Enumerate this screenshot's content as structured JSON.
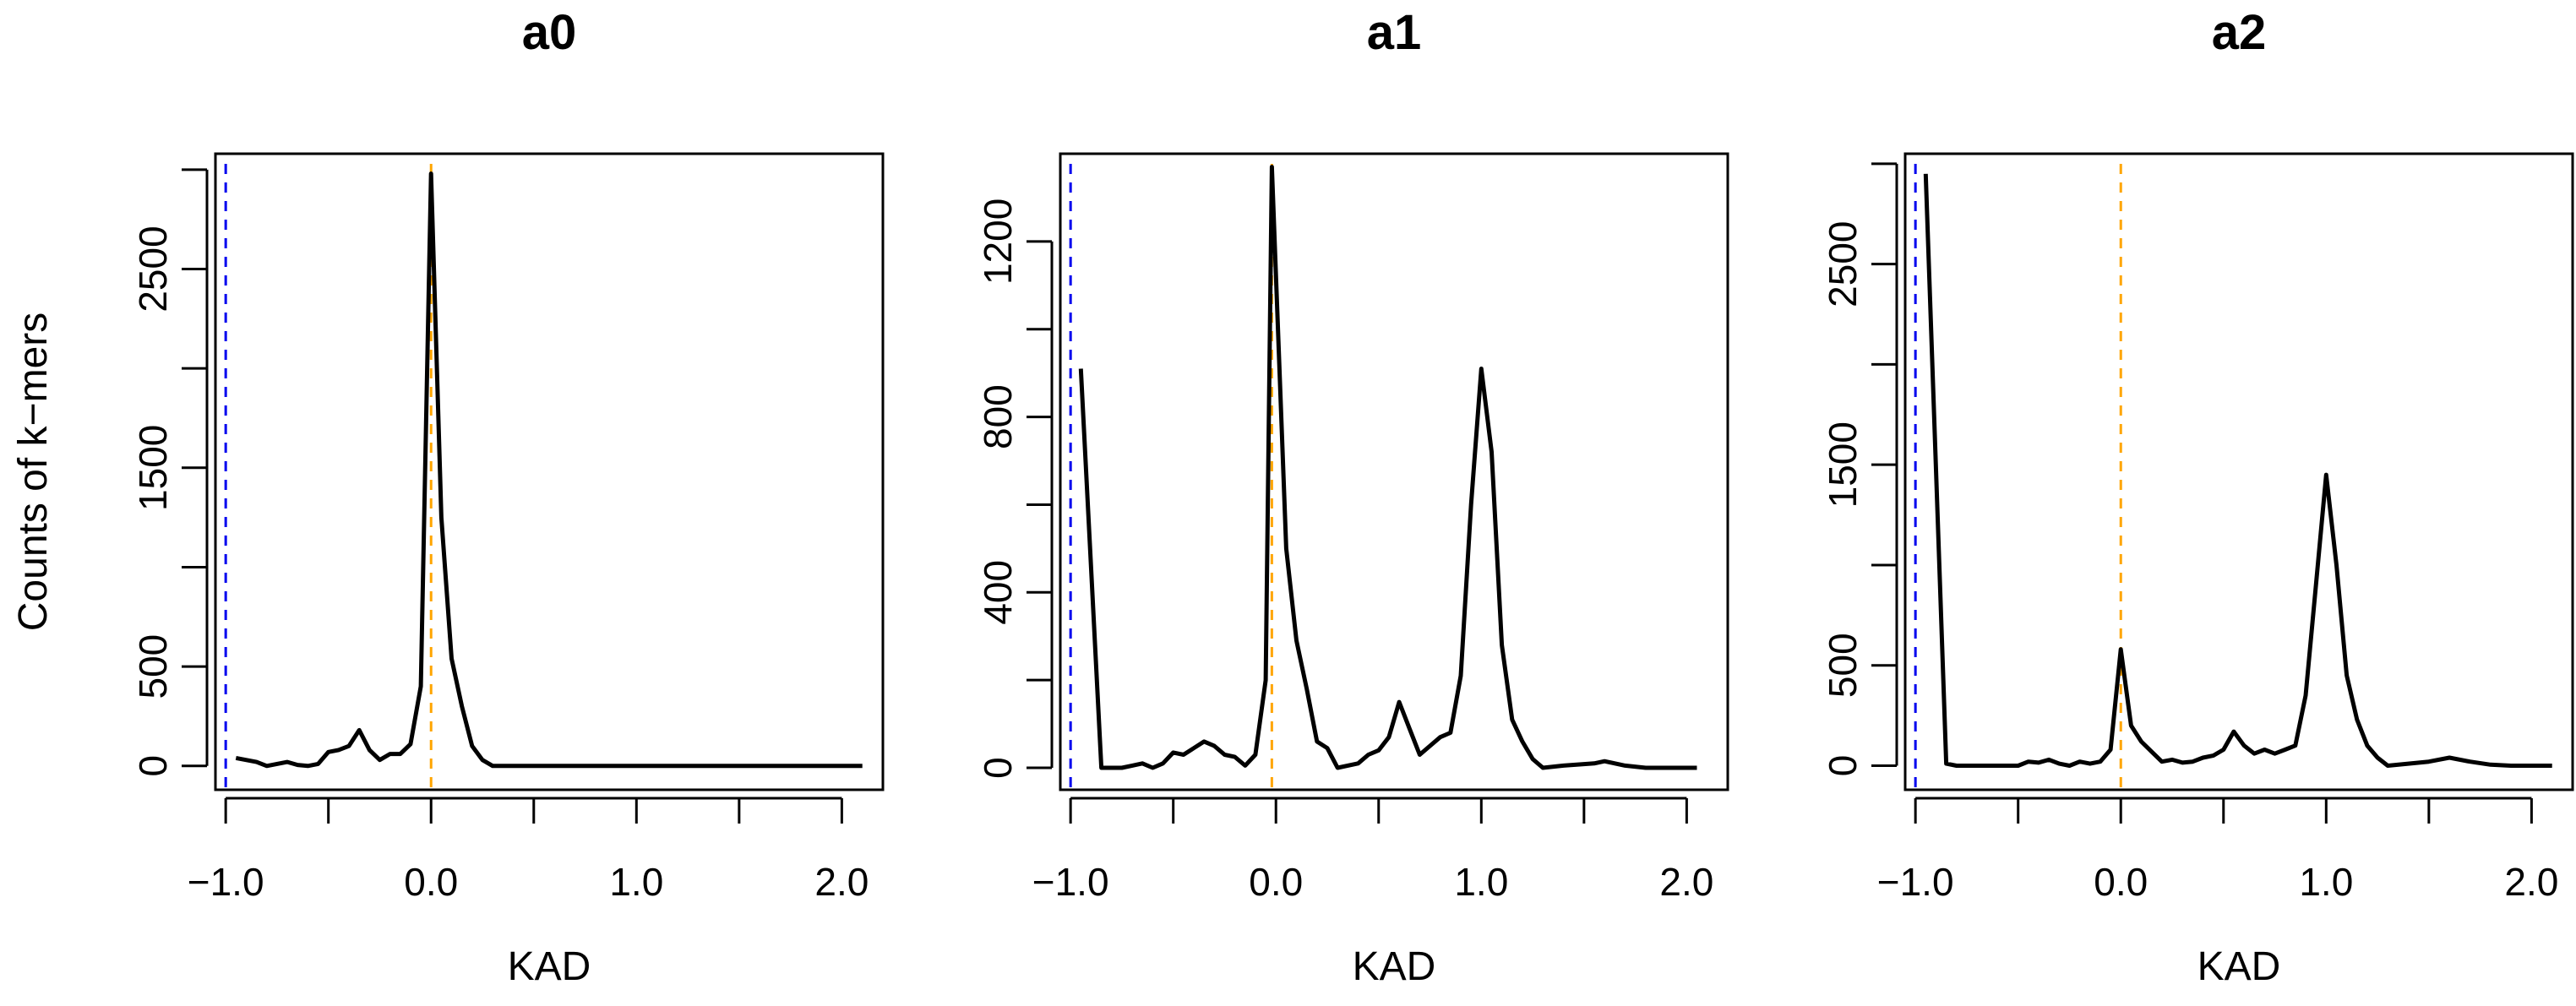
{
  "chart_data": [
    {
      "type": "line",
      "title": "a0",
      "xlabel": "KAD",
      "ylabel": "Counts of k−mers",
      "xlim": [
        -1.05,
        2.2
      ],
      "ylim": [
        -120,
        3080
      ],
      "xticks": [
        -1.0,
        -0.5,
        0.0,
        0.5,
        1.0,
        1.5,
        2.0
      ],
      "xtick_labels": [
        "−1.0",
        "0.0",
        "1.0",
        "2.0"
      ],
      "yticks": [
        0,
        500,
        1000,
        1500,
        2000,
        2500,
        3000
      ],
      "ytick_labels": [
        "0",
        "500",
        "1500",
        "2500"
      ],
      "vlines": [
        {
          "x": -1.0,
          "color": "#0000ee"
        },
        {
          "x": 0.0,
          "color": "#ffa500"
        }
      ],
      "line_color": "#000000",
      "series": [
        {
          "x": [
            -0.95,
            -0.85,
            -0.8,
            -0.75,
            -0.7,
            -0.65,
            -0.6,
            -0.55,
            -0.5,
            -0.45,
            -0.4,
            -0.35,
            -0.3,
            -0.25,
            -0.2,
            -0.15,
            -0.1,
            -0.05,
            0.0,
            0.05,
            0.1,
            0.15,
            0.2,
            0.25,
            0.3,
            0.35,
            0.5,
            1.0,
            1.5,
            2.1
          ],
          "y": [
            40,
            20,
            0,
            10,
            20,
            5,
            0,
            10,
            70,
            80,
            100,
            180,
            80,
            30,
            60,
            60,
            110,
            400,
            2980,
            1250,
            540,
            300,
            100,
            30,
            0,
            0,
            0,
            0,
            0,
            0
          ]
        }
      ]
    },
    {
      "type": "line",
      "title": "a1",
      "xlabel": "KAD",
      "ylabel": "",
      "xlim": [
        -1.05,
        2.2
      ],
      "ylim": [
        -50,
        1400
      ],
      "xticks": [
        -1.0,
        -0.5,
        0.0,
        0.5,
        1.0,
        1.5,
        2.0
      ],
      "xtick_labels": [
        "−1.0",
        "0.0",
        "1.0",
        "2.0"
      ],
      "yticks": [
        0,
        200,
        400,
        600,
        800,
        1000,
        1200
      ],
      "ytick_labels": [
        "0",
        "400",
        "800",
        "1200"
      ],
      "vlines": [
        {
          "x": -1.0,
          "color": "#0000ee"
        },
        {
          "x": -0.02,
          "color": "#ffa500"
        }
      ],
      "line_color": "#000000",
      "series": [
        {
          "x": [
            -0.95,
            -0.85,
            -0.75,
            -0.7,
            -0.65,
            -0.6,
            -0.55,
            -0.5,
            -0.45,
            -0.4,
            -0.35,
            -0.3,
            -0.25,
            -0.2,
            -0.15,
            -0.1,
            -0.05,
            -0.02,
            0.05,
            0.1,
            0.15,
            0.2,
            0.25,
            0.3,
            0.4,
            0.45,
            0.5,
            0.55,
            0.6,
            0.65,
            0.7,
            0.75,
            0.8,
            0.85,
            0.9,
            0.95,
            1.0,
            1.05,
            1.1,
            1.15,
            1.2,
            1.25,
            1.3,
            1.4,
            1.55,
            1.6,
            1.7,
            1.8,
            2.05
          ],
          "y": [
            910,
            0,
            0,
            5,
            10,
            0,
            10,
            35,
            30,
            45,
            60,
            50,
            30,
            25,
            5,
            30,
            200,
            1370,
            500,
            290,
            180,
            60,
            45,
            0,
            10,
            30,
            40,
            70,
            150,
            90,
            30,
            50,
            70,
            80,
            210,
            600,
            910,
            720,
            280,
            110,
            60,
            20,
            0,
            5,
            10,
            15,
            5,
            0,
            0
          ]
        }
      ]
    },
    {
      "type": "line",
      "title": "a2",
      "xlabel": "KAD",
      "ylabel": "",
      "xlim": [
        -1.05,
        2.2
      ],
      "ylim": [
        -120,
        3050
      ],
      "xticks": [
        -1.0,
        -0.5,
        0.0,
        0.5,
        1.0,
        1.5,
        2.0
      ],
      "xtick_labels": [
        "−1.0",
        "0.0",
        "1.0",
        "2.0"
      ],
      "yticks": [
        0,
        500,
        1000,
        1500,
        2000,
        2500,
        3000
      ],
      "ytick_labels": [
        "0",
        "500",
        "1500",
        "2500"
      ],
      "vlines": [
        {
          "x": -1.0,
          "color": "#0000ee"
        },
        {
          "x": 0.0,
          "color": "#ffa500"
        }
      ],
      "line_color": "#000000",
      "series": [
        {
          "x": [
            -0.95,
            -0.85,
            -0.8,
            -0.7,
            -0.6,
            -0.5,
            -0.45,
            -0.4,
            -0.35,
            -0.3,
            -0.25,
            -0.2,
            -0.15,
            -0.1,
            -0.05,
            0.0,
            0.05,
            0.1,
            0.15,
            0.2,
            0.25,
            0.3,
            0.35,
            0.4,
            0.45,
            0.5,
            0.55,
            0.6,
            0.65,
            0.7,
            0.75,
            0.8,
            0.85,
            0.9,
            0.95,
            1.0,
            1.05,
            1.1,
            1.15,
            1.2,
            1.25,
            1.3,
            1.4,
            1.5,
            1.6,
            1.7,
            1.8,
            1.9,
            2.1
          ],
          "y": [
            2950,
            10,
            0,
            0,
            0,
            0,
            20,
            15,
            30,
            10,
            0,
            20,
            10,
            20,
            80,
            580,
            200,
            120,
            70,
            20,
            30,
            15,
            20,
            40,
            50,
            80,
            170,
            100,
            60,
            80,
            60,
            80,
            100,
            350,
            900,
            1450,
            1000,
            450,
            230,
            100,
            40,
            0,
            10,
            20,
            40,
            20,
            5,
            0,
            0
          ]
        }
      ]
    }
  ]
}
